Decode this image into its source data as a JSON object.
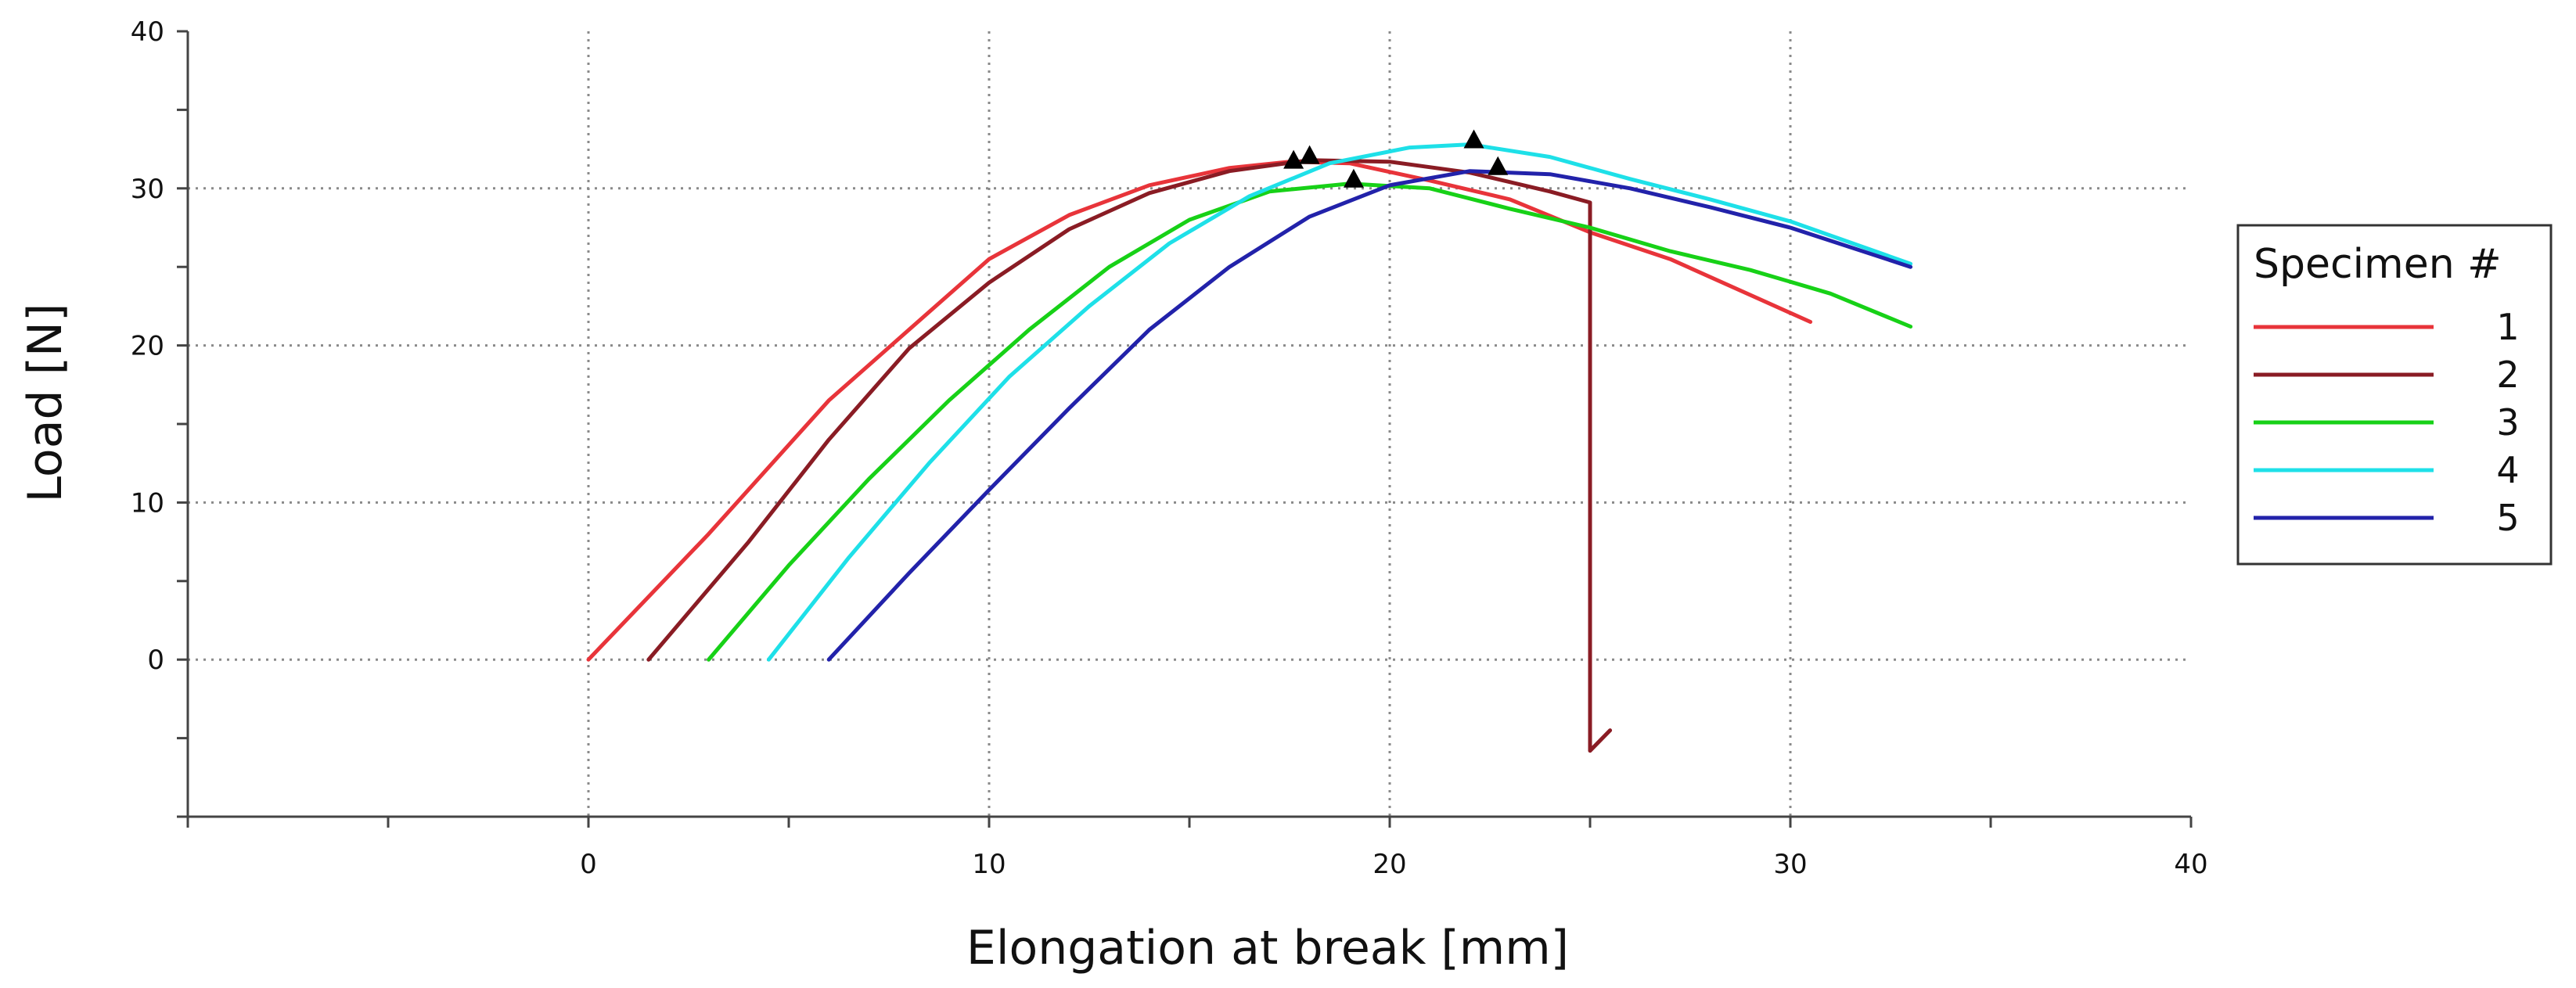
{
  "chart_data": {
    "type": "line",
    "title": "",
    "xlabel": "Elongation at break [mm]",
    "ylabel": "Load [N]",
    "xlim": [
      -10,
      40
    ],
    "ylim": [
      -10,
      40
    ],
    "x_ticks": [
      0,
      10,
      20,
      30,
      40
    ],
    "y_ticks": [
      0,
      10,
      20,
      30,
      40
    ],
    "grid": true,
    "legend": {
      "title": "Specimen #",
      "placement": "right"
    },
    "series": [
      {
        "name": "1",
        "color": "#e8343a",
        "points": [
          [
            0,
            0
          ],
          [
            3,
            8
          ],
          [
            6,
            16.5
          ],
          [
            8,
            21
          ],
          [
            10,
            25.5
          ],
          [
            12,
            28.3
          ],
          [
            14,
            30.2
          ],
          [
            16,
            31.3
          ],
          [
            17.5,
            31.7
          ],
          [
            19,
            31.6
          ],
          [
            21,
            30.5
          ],
          [
            23,
            29.3
          ],
          [
            25,
            27.2
          ],
          [
            27,
            25.5
          ],
          [
            30.5,
            21.5
          ]
        ],
        "marker": [
          17.6,
          31.7
        ]
      },
      {
        "name": "2",
        "color": "#8a1c24",
        "points": [
          [
            1.5,
            0
          ],
          [
            4,
            7.5
          ],
          [
            6,
            14
          ],
          [
            8,
            19.8
          ],
          [
            10,
            24
          ],
          [
            12,
            27.4
          ],
          [
            14,
            29.7
          ],
          [
            16,
            31.1
          ],
          [
            18,
            31.8
          ],
          [
            20,
            31.7
          ],
          [
            22,
            31
          ],
          [
            24,
            29.8
          ],
          [
            25,
            29.1
          ],
          [
            25,
            -5.8
          ],
          [
            25.5,
            -4.5
          ]
        ],
        "marker": [
          18,
          32
        ]
      },
      {
        "name": "3",
        "color": "#17d117",
        "points": [
          [
            3,
            0
          ],
          [
            5,
            6
          ],
          [
            7,
            11.5
          ],
          [
            9,
            16.5
          ],
          [
            11,
            21
          ],
          [
            13,
            25
          ],
          [
            15,
            28
          ],
          [
            17,
            29.8
          ],
          [
            19,
            30.3
          ],
          [
            21,
            30
          ],
          [
            23,
            28.7
          ],
          [
            25,
            27.5
          ],
          [
            27,
            26
          ],
          [
            29,
            24.8
          ],
          [
            31,
            23.3
          ],
          [
            33,
            21.2
          ]
        ],
        "marker": [
          19.1,
          30.5
        ]
      },
      {
        "name": "4",
        "color": "#1ee0e8",
        "points": [
          [
            4.5,
            0
          ],
          [
            6.5,
            6.5
          ],
          [
            8.5,
            12.5
          ],
          [
            10.5,
            18
          ],
          [
            12.5,
            22.5
          ],
          [
            14.5,
            26.5
          ],
          [
            16.5,
            29.5
          ],
          [
            18.5,
            31.6
          ],
          [
            20.5,
            32.6
          ],
          [
            22,
            32.8
          ],
          [
            24,
            32
          ],
          [
            26,
            30.6
          ],
          [
            28,
            29.3
          ],
          [
            30,
            27.9
          ],
          [
            33,
            25.2
          ]
        ],
        "marker": [
          22.1,
          33
        ]
      },
      {
        "name": "5",
        "color": "#2222aa",
        "points": [
          [
            6,
            0
          ],
          [
            8,
            5.5
          ],
          [
            10,
            10.8
          ],
          [
            12,
            16
          ],
          [
            14,
            21
          ],
          [
            16,
            25
          ],
          [
            18,
            28.2
          ],
          [
            20,
            30.2
          ],
          [
            22,
            31.1
          ],
          [
            24,
            30.9
          ],
          [
            26,
            30
          ],
          [
            28,
            28.8
          ],
          [
            30,
            27.5
          ],
          [
            33,
            25
          ]
        ],
        "marker": [
          22.7,
          31.3
        ]
      }
    ]
  }
}
